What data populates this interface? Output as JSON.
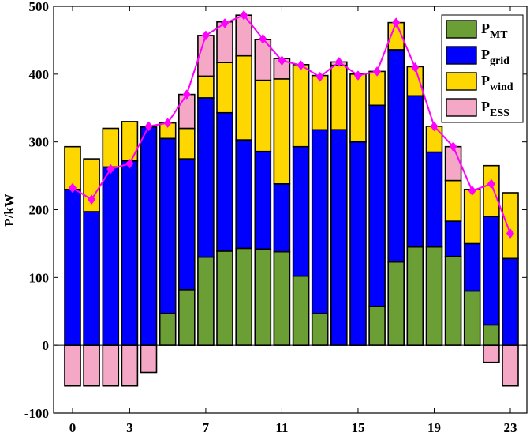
{
  "chart_data": {
    "type": "bar",
    "stacked": true,
    "title": "",
    "xlabel": "",
    "ylabel": "P/kW",
    "ylim": [
      -100,
      500
    ],
    "yticks": [
      "-100",
      "0",
      "100",
      "200",
      "300",
      "400",
      "500"
    ],
    "xticks": [
      {
        "x": 0,
        "label": "0"
      },
      {
        "x": 3,
        "label": "3"
      },
      {
        "x": 7,
        "label": "7"
      },
      {
        "x": 11,
        "label": "11"
      },
      {
        "x": 15,
        "label": "15"
      },
      {
        "x": 19,
        "label": "19"
      },
      {
        "x": 23,
        "label": "23"
      }
    ],
    "x": [
      0,
      1,
      2,
      3,
      4,
      5,
      6,
      7,
      8,
      9,
      10,
      11,
      12,
      13,
      14,
      15,
      16,
      17,
      18,
      19,
      20,
      21,
      22,
      23
    ],
    "grid": false,
    "legend_position": "top-right",
    "series": [
      {
        "name": "P",
        "sub": "MT",
        "color": "#6b9e34",
        "values": [
          0,
          0,
          0,
          0,
          0,
          47,
          82,
          130,
          139,
          143,
          142,
          138,
          102,
          47,
          0,
          0,
          57,
          123,
          145,
          145,
          131,
          80,
          30,
          0
        ]
      },
      {
        "name": "P",
        "sub": "grid",
        "color": "#0000ff",
        "values": [
          230,
          197,
          263,
          272,
          322,
          258,
          193,
          235,
          204,
          160,
          144,
          100,
          191,
          271,
          318,
          300,
          297,
          313,
          223,
          140,
          52,
          70,
          160,
          128
        ]
      },
      {
        "name": "P",
        "sub": "wind",
        "color": "#ffd700",
        "values": [
          63,
          78,
          57,
          58,
          0,
          23,
          45,
          32,
          74,
          124,
          105,
          155,
          121,
          80,
          95,
          100,
          50,
          40,
          43,
          38,
          60,
          80,
          75,
          97
        ]
      },
      {
        "name": "P",
        "sub": "ESS",
        "color": "#f5a7c6",
        "values": [
          -60,
          -60,
          -60,
          -60,
          -40,
          0,
          50,
          60,
          60,
          60,
          60,
          30,
          0,
          0,
          5,
          0,
          0,
          0,
          0,
          0,
          50,
          0,
          -25,
          -60
        ]
      }
    ],
    "load": {
      "color": "#ff00ff",
      "values": [
        232,
        215,
        260,
        268,
        323,
        328,
        370,
        457,
        475,
        487,
        452,
        420,
        413,
        396,
        418,
        398,
        404,
        476,
        410,
        323,
        293,
        228,
        238,
        165
      ]
    }
  }
}
